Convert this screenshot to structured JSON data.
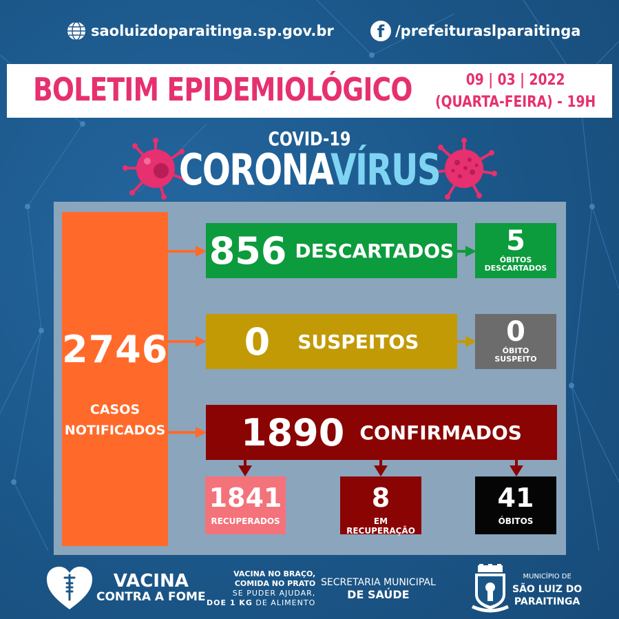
{
  "top": {
    "website": "saoluizdoparaitinga.sp.gov.br",
    "facebook": "/prefeituraslparaitinga",
    "globe_icon": "globe-icon",
    "facebook_icon": "facebook-icon"
  },
  "header": {
    "title": "BOLETIM EPIDEMIOLÓGICO",
    "date": "09 | 03 | 2022",
    "weekday_time": "(QUARTA-FEIRA) - 19H"
  },
  "hero": {
    "covid": "COVID-19",
    "corona": "CORONA",
    "virus": "VÍRUS"
  },
  "stats": {
    "notified": {
      "value": "2746",
      "label_line1": "CASOS",
      "label_line2": "NOTIFICADOS"
    },
    "discarded": {
      "value": "856",
      "label": "DESCARTADOS"
    },
    "discarded_deaths": {
      "value": "5",
      "label_line1": "ÓBITOS",
      "label_line2": "DESCARTADOS"
    },
    "suspected": {
      "value": "0",
      "label": "SUSPEITOS"
    },
    "suspected_deaths": {
      "value": "0",
      "label_line1": "ÓBITO",
      "label_line2": "SUSPEITO"
    },
    "confirmed": {
      "value": "1890",
      "label": "CONFIRMADOS"
    },
    "recovered": {
      "value": "1841",
      "label": "RECUPERADOS"
    },
    "recovering": {
      "value": "8",
      "label": "EM RECUPERAÇÃO"
    },
    "deaths": {
      "value": "41",
      "label": "ÓBITOS"
    }
  },
  "colors": {
    "background": "#1b5688",
    "pink": "#e6306f",
    "orange": "#ff6a2b",
    "green": "#0c9b3d",
    "yellow": "#c29a06",
    "red": "#8a0404",
    "grey": "#6c6c6c",
    "light_red": "#f4727a",
    "light_blue": "#7fd4f4"
  },
  "footer": {
    "vacina": "VACINA",
    "contra": "CONTRA A FOME",
    "braco_line1": "VACINA NO BRAÇO,",
    "braco_line2": "COMIDA NO PRATO",
    "braco_line3": "SE PUDER AJUDAR,",
    "braco_line4_bold": "DOE 1 KG",
    "braco_line4_rest": " DE ALIMENTO",
    "sec_line1": "SECRETARIA MUNICIPAL",
    "sec_line2": "DE SAÚDE",
    "muni_line1": "MUNICÍPIO DE",
    "muni_line2": "SÃO LUIZ DO",
    "muni_line3": "PARAITINGA"
  }
}
